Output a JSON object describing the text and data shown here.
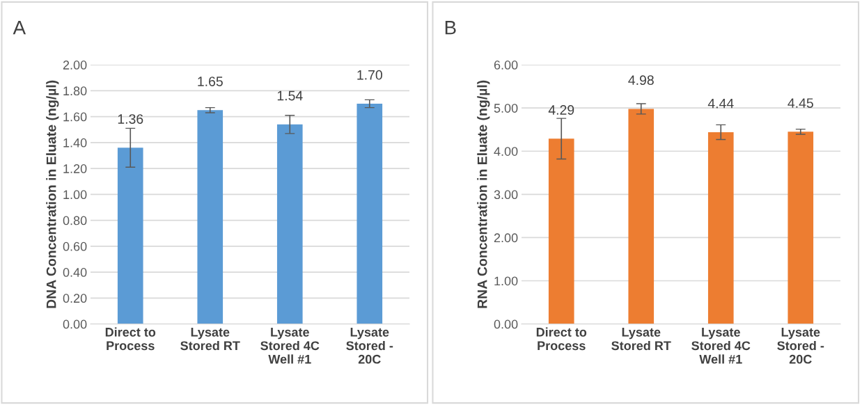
{
  "chart_data": [
    {
      "type": "bar",
      "title": "A",
      "ylabel": "DNA Concentration in Eluate (ng/µl)",
      "categories": [
        "Direct to\nProcess",
        "Lysate\nStored RT",
        "Lysate\nStored 4C\nWell #1",
        "Lysate\nStored -\n20C"
      ],
      "values": [
        1.36,
        1.65,
        1.54,
        1.7
      ],
      "value_labels": [
        "1.36",
        "1.65",
        "1.54",
        "1.70"
      ],
      "errors": [
        0.15,
        0.02,
        0.07,
        0.03
      ],
      "color": "#5b9bd5",
      "ylim": [
        0,
        2
      ],
      "yticks": [
        {
          "value": 0,
          "label": "0.00"
        },
        {
          "value": 0.2,
          "label": "0.20"
        },
        {
          "value": 0.4,
          "label": "0.40"
        },
        {
          "value": 0.6,
          "label": "0.60"
        },
        {
          "value": 0.8,
          "label": "0.80"
        },
        {
          "value": 1.0,
          "label": "1.00"
        },
        {
          "value": 1.2,
          "label": "1.20"
        },
        {
          "value": 1.4,
          "label": "1.40"
        },
        {
          "value": 1.6,
          "label": "1.60"
        },
        {
          "value": 1.8,
          "label": "1.80"
        },
        {
          "value": 2.0,
          "label": "2.00"
        }
      ],
      "grid": "y"
    },
    {
      "type": "bar",
      "title": "B",
      "ylabel": "RNA Concentration in Eluate (ng/µl)",
      "categories": [
        "Direct to\nProcess",
        "Lysate\nStored RT",
        "Lysate\nStored 4C\nWell #1",
        "Lysate\nStored -\n20C"
      ],
      "values": [
        4.29,
        4.98,
        4.44,
        4.45
      ],
      "value_labels": [
        "4.29",
        "4.98",
        "4.44",
        "4.45"
      ],
      "errors": [
        0.47,
        0.12,
        0.17,
        0.06
      ],
      "color": "#ed7d31",
      "ylim": [
        0,
        6
      ],
      "yticks": [
        {
          "value": 0,
          "label": "0.00"
        },
        {
          "value": 1,
          "label": "1.00"
        },
        {
          "value": 2,
          "label": "2.00"
        },
        {
          "value": 3,
          "label": "3.00"
        },
        {
          "value": 4,
          "label": "4.00"
        },
        {
          "value": 5,
          "label": "5.00"
        },
        {
          "value": 6,
          "label": "6.00"
        }
      ],
      "grid": "y"
    }
  ]
}
